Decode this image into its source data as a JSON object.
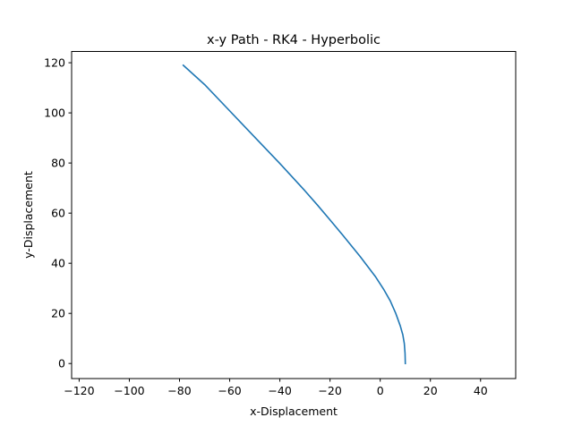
{
  "chart_data": {
    "type": "line",
    "title": "x-y Path - RK4 - Hyperbolic",
    "xlabel": "x-Displacement",
    "ylabel": "y-Displacement",
    "xlim": [
      -123,
      54
    ],
    "ylim": [
      -6,
      124.5
    ],
    "xticks": [
      -120,
      -100,
      -80,
      -60,
      -40,
      -20,
      0,
      20,
      40
    ],
    "yticks": [
      0,
      20,
      40,
      60,
      80,
      100,
      120
    ],
    "grid": false,
    "series": [
      {
        "color": "#1f77b4",
        "x": [
          10,
          9.9,
          9.6,
          9.0,
          8.0,
          6.2,
          4.0,
          1.5,
          -2,
          -8,
          -15,
          -20,
          -25,
          -30,
          -40,
          -50,
          -60,
          -70,
          -78.5
        ],
        "y": [
          0,
          4,
          8,
          11.5,
          15,
          20,
          25,
          29.4,
          34.8,
          42.7,
          51.3,
          57.3,
          63.2,
          68.9,
          79.8,
          90.3,
          100.8,
          111.3,
          119
        ]
      }
    ]
  }
}
